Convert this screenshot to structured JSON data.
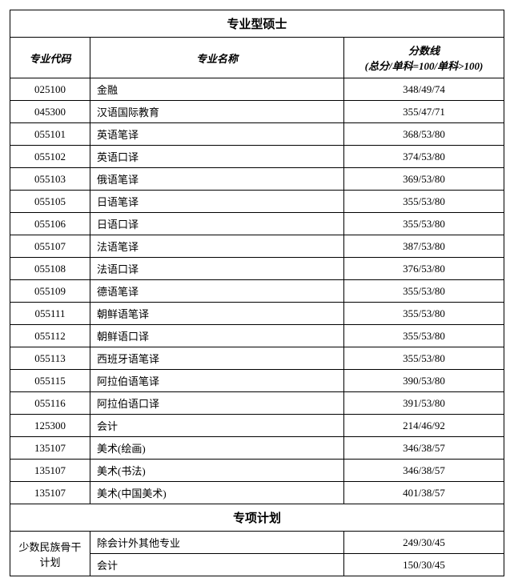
{
  "section1": {
    "title": "专业型硕士",
    "headers": {
      "code": "专业代码",
      "name": "专业名称",
      "score": "分数线",
      "score_sub": "(总分/单科=100/单科>100)"
    },
    "rows": [
      {
        "code": "025100",
        "name": "金融",
        "score": "348/49/74"
      },
      {
        "code": "045300",
        "name": "汉语国际教育",
        "score": "355/47/71"
      },
      {
        "code": "055101",
        "name": "英语笔译",
        "score": "368/53/80"
      },
      {
        "code": "055102",
        "name": "英语口译",
        "score": "374/53/80"
      },
      {
        "code": "055103",
        "name": "俄语笔译",
        "score": "369/53/80"
      },
      {
        "code": "055105",
        "name": "日语笔译",
        "score": "355/53/80"
      },
      {
        "code": "055106",
        "name": "日语口译",
        "score": "355/53/80"
      },
      {
        "code": "055107",
        "name": "法语笔译",
        "score": "387/53/80"
      },
      {
        "code": "055108",
        "name": "法语口译",
        "score": "376/53/80"
      },
      {
        "code": "055109",
        "name": "德语笔译",
        "score": "355/53/80"
      },
      {
        "code": "055111",
        "name": "朝鲜语笔译",
        "score": "355/53/80"
      },
      {
        "code": "055112",
        "name": "朝鲜语口译",
        "score": "355/53/80"
      },
      {
        "code": "055113",
        "name": "西班牙语笔译",
        "score": "355/53/80"
      },
      {
        "code": "055115",
        "name": "阿拉伯语笔译",
        "score": "390/53/80"
      },
      {
        "code": "055116",
        "name": "阿拉伯语口译",
        "score": "391/53/80"
      },
      {
        "code": "125300",
        "name": "会计",
        "score": "214/46/92"
      },
      {
        "code": "135107",
        "name": "美术(绘画)",
        "score": "346/38/57"
      },
      {
        "code": "135107",
        "name": "美术(书法)",
        "score": "346/38/57"
      },
      {
        "code": "135107",
        "name": "美术(中国美术)",
        "score": "401/38/57"
      }
    ]
  },
  "section2": {
    "title": "专项计划",
    "group_label": "少数民族骨干计划",
    "rows": [
      {
        "name": "除会计外其他专业",
        "score": "249/30/45"
      },
      {
        "name": "会计",
        "score": "150/30/45"
      }
    ]
  },
  "style": {
    "background_color": "#ffffff",
    "border_color": "#000000",
    "font_family": "SimSun",
    "body_fontsize": 13,
    "header_fontsize": 15,
    "col_widths": {
      "code": 100,
      "name": "auto",
      "score": 200
    }
  }
}
